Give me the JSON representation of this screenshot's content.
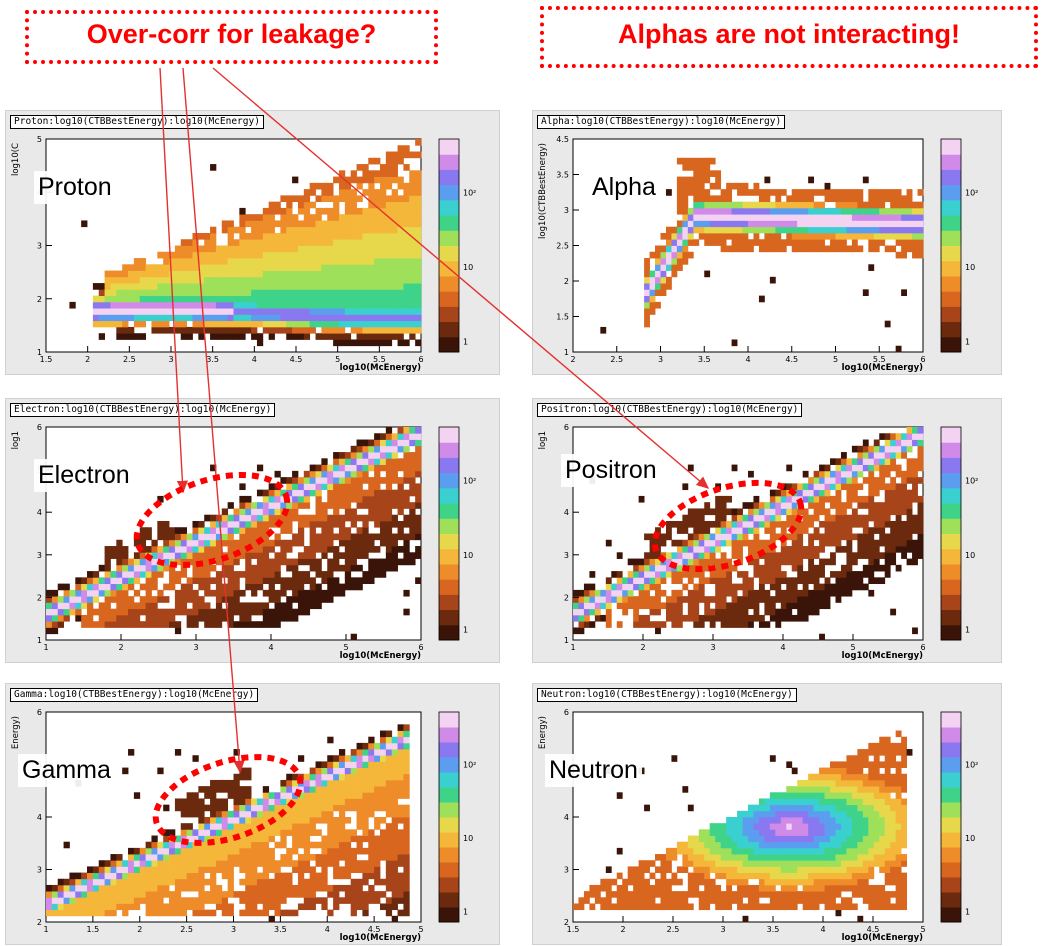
{
  "callouts": {
    "left": "Over-corr for leakage?",
    "right": "Alphas are not interacting!"
  },
  "colors": {
    "callout": "#ff0000",
    "arrow": "#e53030",
    "panel_bg": "#e9e9e9"
  },
  "chart_data": [
    {
      "type": "heatmap",
      "title": "Proton:log10(CTBBestEnergy):log10(McEnergy)",
      "particle_label": "Proton",
      "xlabel": "log10(McEnergy)",
      "ylabel": "log10(C",
      "xlim": [
        1.5,
        6
      ],
      "ylim": [
        1,
        6
      ],
      "x_ticks": [
        "1.5",
        "2",
        "2.5",
        "3",
        "3.5",
        "4",
        "4.5",
        "5",
        "5.5",
        "6"
      ],
      "y_ticks": [
        "1",
        "2",
        "3",
        "4",
        "5"
      ],
      "colorbar_ticks": [
        "1",
        "10",
        "10²"
      ],
      "colorbar_scale": "log",
      "grid": false
    },
    {
      "type": "heatmap",
      "title": "Alpha:log10(CTBBestEnergy):log10(McEnergy)",
      "particle_label": "Alpha",
      "xlabel": "log10(McEnergy)",
      "ylabel": "log10(CTBBestEnergy)",
      "xlim": [
        1.5,
        6
      ],
      "ylim": [
        1,
        4.5
      ],
      "x_ticks": [
        "2",
        "2.5",
        "3",
        "3.5",
        "4",
        "4.5",
        "5",
        "5.5",
        "6"
      ],
      "y_ticks": [
        "1",
        "1.5",
        "2",
        "2.5",
        "3",
        "3.5",
        "4.5"
      ],
      "colorbar_ticks": [
        "1",
        "10",
        "10²"
      ],
      "colorbar_scale": "log",
      "grid": false
    },
    {
      "type": "heatmap",
      "title": "Electron:log10(CTBBestEnergy):log10(McEnergy)",
      "particle_label": "Electron",
      "xlabel": "log10(McEnergy)",
      "ylabel": "log1",
      "xlim": [
        1,
        6
      ],
      "ylim": [
        1,
        6
      ],
      "x_ticks": [
        "1",
        "2",
        "3",
        "4",
        "5",
        "6"
      ],
      "y_ticks": [
        "1",
        "2",
        "3",
        "4",
        "5",
        "6"
      ],
      "colorbar_ticks": [
        "1",
        "10",
        "10²"
      ],
      "colorbar_scale": "log",
      "grid": false
    },
    {
      "type": "heatmap",
      "title": "Positron:log10(CTBBestEnergy):log10(McEnergy)",
      "particle_label": "Positron",
      "xlabel": "log10(McEnergy)",
      "ylabel": "log1",
      "xlim": [
        1,
        6
      ],
      "ylim": [
        1,
        6
      ],
      "x_ticks": [
        "1",
        "2",
        "3",
        "4",
        "5",
        "6"
      ],
      "y_ticks": [
        "1",
        "2",
        "3",
        "4",
        "5",
        "6"
      ],
      "colorbar_ticks": [
        "1",
        "10",
        "10²"
      ],
      "colorbar_scale": "log",
      "grid": false
    },
    {
      "type": "heatmap",
      "title": "Gamma:log10(CTBBestEnergy):log10(McEnergy)",
      "particle_label": "Gamma",
      "xlabel": "log10(McEnergy)",
      "ylabel": "Energy)",
      "xlim": [
        1,
        5
      ],
      "ylim": [
        1,
        6
      ],
      "x_ticks": [
        "1",
        "1.5",
        "2",
        "2.5",
        "3",
        "3.5",
        "4",
        "4.5",
        "5"
      ],
      "y_ticks": [
        "2",
        "3",
        "4",
        "5",
        "6"
      ],
      "colorbar_ticks": [
        "1",
        "10",
        "10²"
      ],
      "colorbar_scale": "log",
      "grid": false
    },
    {
      "type": "heatmap",
      "title": "Neutron:log10(CTBBestEnergy):log10(McEnergy)",
      "particle_label": "Neutron",
      "xlabel": "log10(McEnergy)",
      "ylabel": "Energy)",
      "xlim": [
        1,
        5
      ],
      "ylim": [
        1,
        6
      ],
      "x_ticks": [
        "1.5",
        "2",
        "2.5",
        "3",
        "3.5",
        "4",
        "4.5",
        "5"
      ],
      "y_ticks": [
        "2",
        "3",
        "4",
        "5",
        "6"
      ],
      "colorbar_ticks": [
        "1",
        "10",
        "10²"
      ],
      "colorbar_scale": "log",
      "grid": false
    }
  ]
}
